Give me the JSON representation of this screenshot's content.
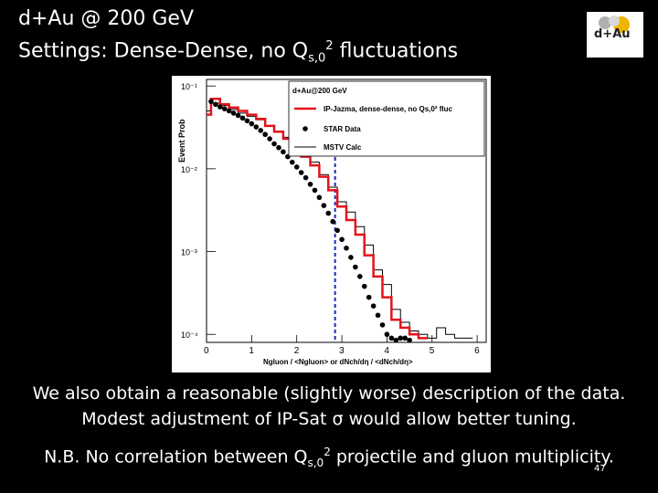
{
  "slide": {
    "title_line1": "d+Au @ 200 GeV",
    "title_line2_prefix": "Settings:   Dense-Dense, no Q",
    "title_line2_sub": "s,0",
    "title_line2_sup": "2",
    "title_line2_suffix": " fluctuations",
    "logo_text": "d+Au",
    "caption_line1": "We also obtain a reasonable (slightly worse) description of the data.",
    "caption_line2": "Modest adjustment of IP-Sat σ would allow better tuning.",
    "caption_line3_prefix": "N.B. No correlation between Q",
    "caption_line3_sub": "s,0",
    "caption_line3_sup": "2",
    "caption_line3_suffix": " projectile and gluon multiplicity.",
    "page_number": "47"
  },
  "chart_data": {
    "type": "line",
    "panel_label": "d+Au@200 GeV",
    "ylabel": "Event Prob",
    "xlabel": "Ngluon / <Ngluon> or dNch/dη / <dNch/dη>",
    "xlim": [
      0,
      6.2
    ],
    "ylog": true,
    "ylim": [
      8e-05,
      0.12
    ],
    "x_ticks": [
      "0",
      "1",
      "2",
      "3",
      "4",
      "5",
      "6"
    ],
    "y_ticks": [
      "10⁻¹",
      "10⁻²",
      "10⁻³",
      "10⁻⁴"
    ],
    "y_tick_values": [
      0.1,
      0.01,
      0.001,
      0.0001
    ],
    "legend": [
      {
        "label": "IP-Jazma, dense-dense, no Qs,0² fluc",
        "style": "red-step"
      },
      {
        "label": "STAR Data",
        "style": "black-dots"
      },
      {
        "label": "MSTV Calc",
        "style": "black-step"
      }
    ],
    "vline_x": 2.85,
    "series": [
      {
        "name": "IP-Jazma, dense-dense, no Qs,0² fluc",
        "color": "#e3141b",
        "bins": [
          0,
          0.1,
          0.3,
          0.5,
          0.7,
          0.9,
          1.1,
          1.3,
          1.5,
          1.7,
          1.9,
          2.1,
          2.3,
          2.5,
          2.7,
          2.9,
          3.1,
          3.3,
          3.5,
          3.7,
          3.9,
          4.1,
          4.3,
          4.5,
          4.7,
          4.9
        ],
        "values": [
          0.045,
          0.07,
          0.06,
          0.055,
          0.05,
          0.045,
          0.04,
          0.033,
          0.028,
          0.023,
          0.018,
          0.014,
          0.011,
          0.008,
          0.0055,
          0.0035,
          0.0024,
          0.0016,
          0.0009,
          0.0005,
          0.00028,
          0.00015,
          0.00012,
          0.0001,
          9e-05
        ]
      },
      {
        "name": "STAR Data",
        "color": "#000000",
        "x": [
          0.1,
          0.2,
          0.3,
          0.4,
          0.5,
          0.6,
          0.7,
          0.8,
          0.9,
          1.0,
          1.1,
          1.2,
          1.3,
          1.4,
          1.5,
          1.6,
          1.7,
          1.8,
          1.9,
          2.0,
          2.1,
          2.2,
          2.3,
          2.4,
          2.5,
          2.6,
          2.7,
          2.8,
          2.9,
          3.0,
          3.1,
          3.2,
          3.3,
          3.4,
          3.5,
          3.6,
          3.7,
          3.8,
          3.9,
          4.0,
          4.1,
          4.2,
          4.3,
          4.4,
          4.5
        ],
        "y": [
          0.065,
          0.06,
          0.056,
          0.053,
          0.05,
          0.047,
          0.044,
          0.041,
          0.038,
          0.035,
          0.032,
          0.029,
          0.026,
          0.023,
          0.02,
          0.018,
          0.016,
          0.014,
          0.012,
          0.0105,
          0.009,
          0.0078,
          0.0065,
          0.0055,
          0.0045,
          0.0036,
          0.0029,
          0.0023,
          0.0018,
          0.0014,
          0.0011,
          0.00085,
          0.00065,
          0.0005,
          0.00038,
          0.00028,
          0.00022,
          0.00017,
          0.00013,
          0.0001,
          9e-05,
          8.5e-05,
          9e-05,
          9e-05,
          8.5e-05
        ]
      },
      {
        "name": "MSTV Calc",
        "color": "#000000",
        "bins": [
          0,
          0.1,
          0.3,
          0.5,
          0.7,
          0.9,
          1.1,
          1.3,
          1.5,
          1.7,
          1.9,
          2.1,
          2.3,
          2.5,
          2.7,
          2.9,
          3.1,
          3.3,
          3.5,
          3.7,
          3.9,
          4.1,
          4.3,
          4.5,
          4.7,
          4.9,
          5.1,
          5.3,
          5.5,
          5.7,
          5.9
        ],
        "values": [
          0.05,
          0.062,
          0.058,
          0.052,
          0.047,
          0.043,
          0.039,
          0.033,
          0.028,
          0.024,
          0.018,
          0.015,
          0.012,
          0.0085,
          0.006,
          0.004,
          0.003,
          0.002,
          0.0012,
          0.0006,
          0.0004,
          0.0002,
          0.00014,
          0.00011,
          0.0001,
          9e-05,
          0.00012,
          0.0001,
          9e-05,
          9e-05
        ]
      }
    ]
  }
}
